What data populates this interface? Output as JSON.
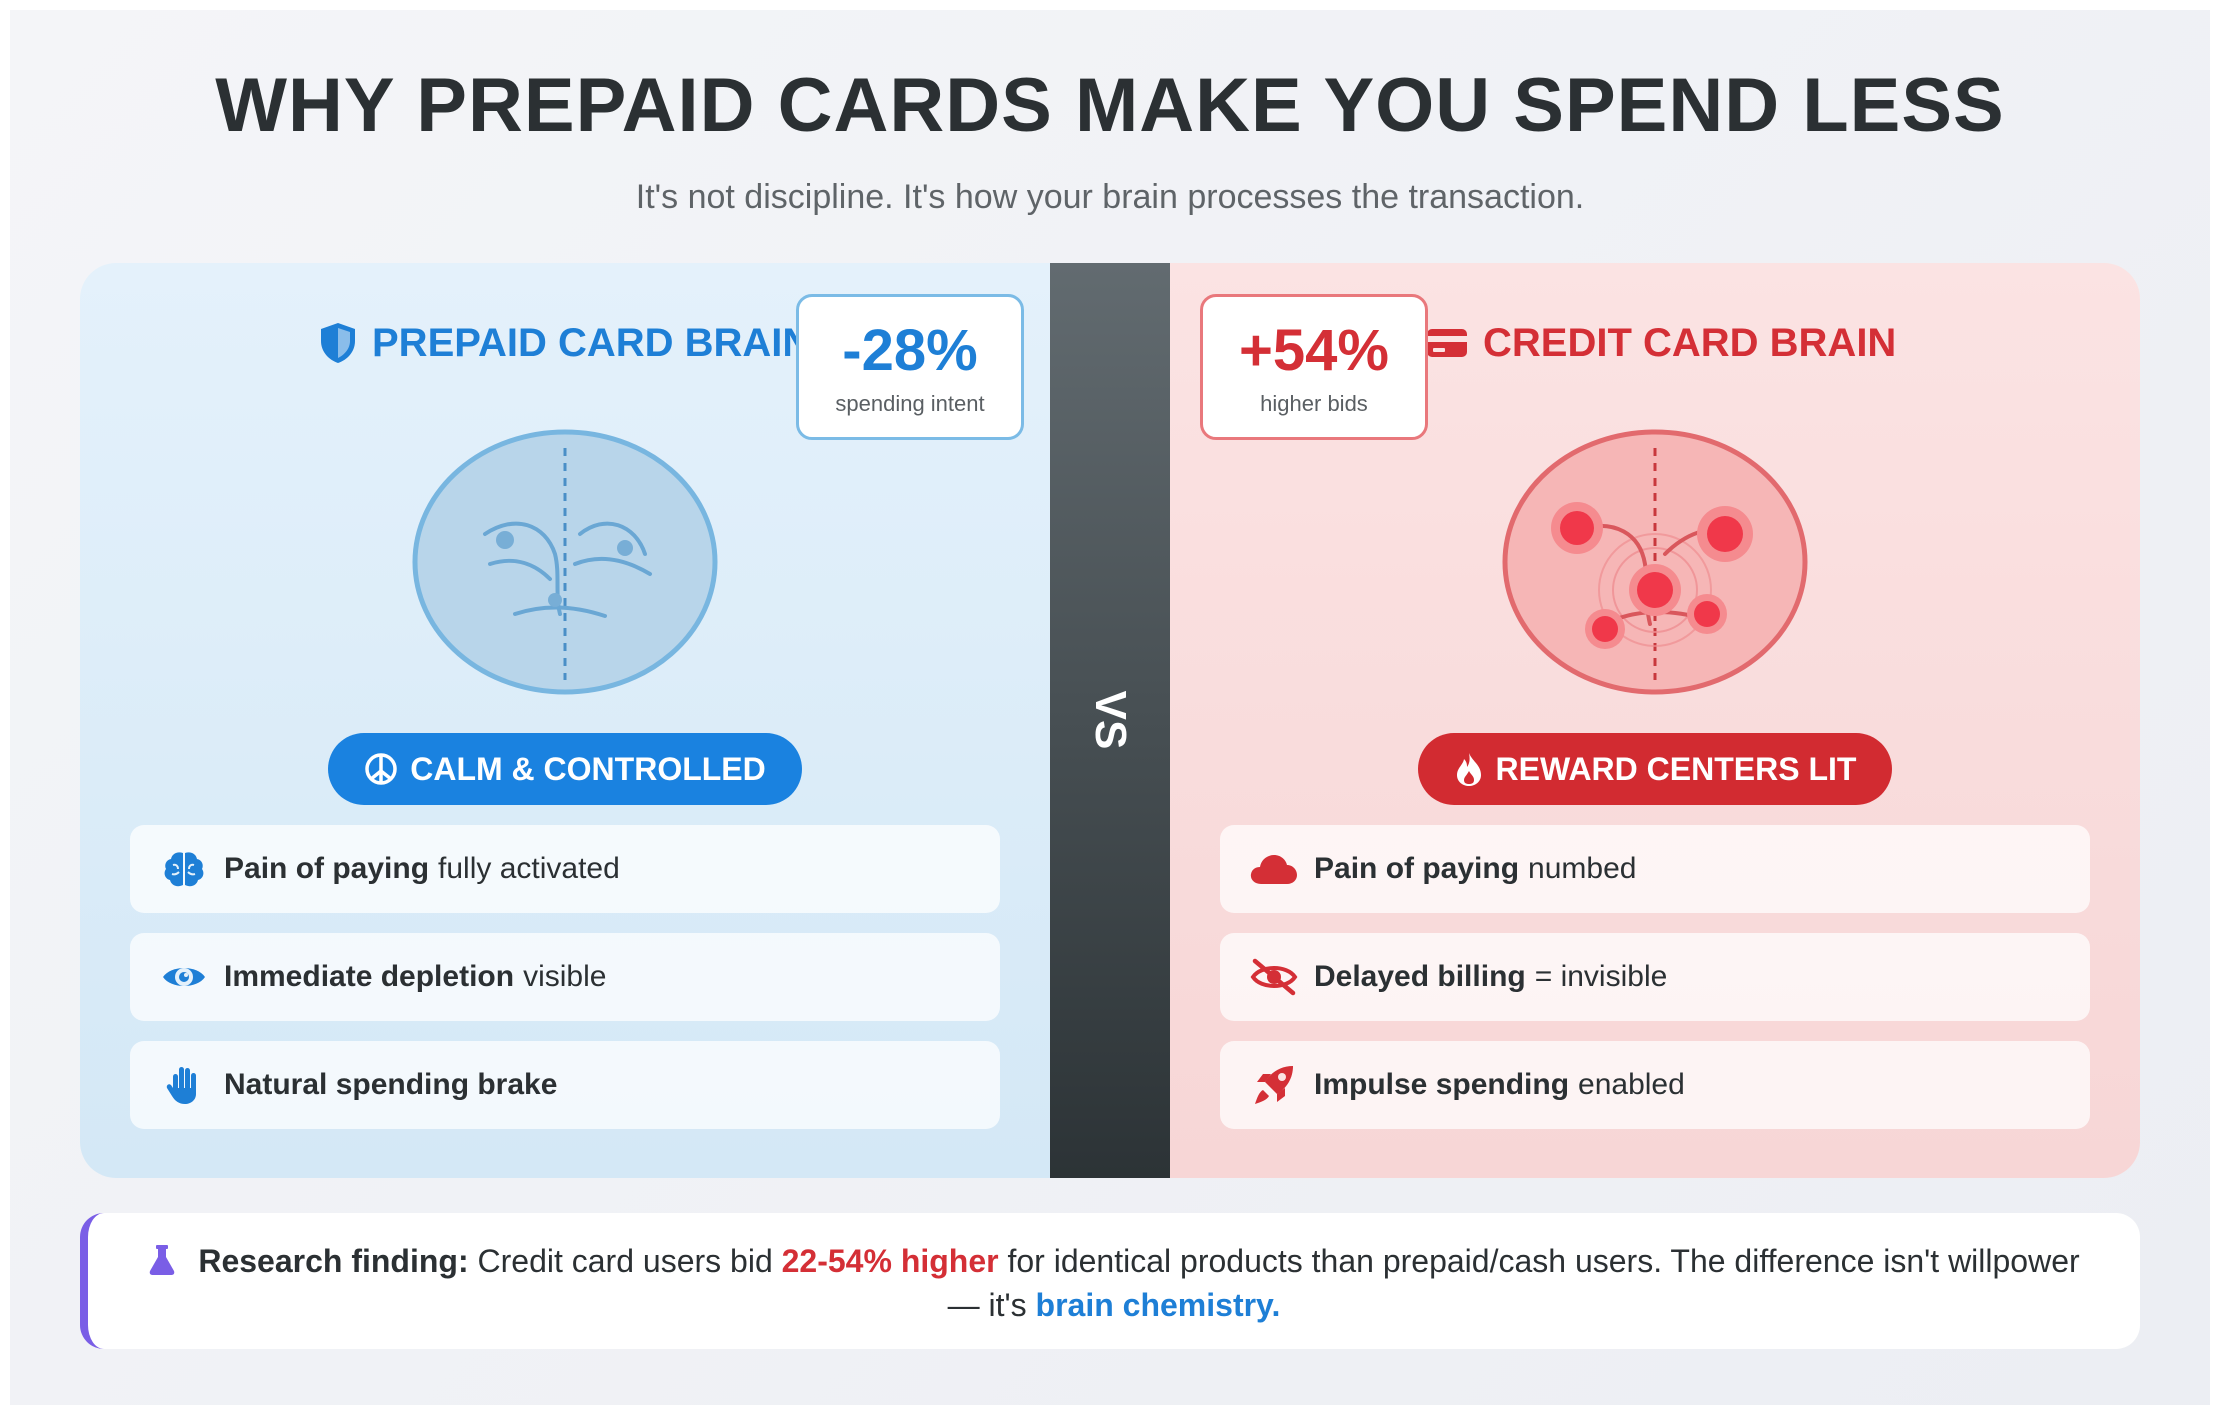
{
  "header": {
    "title": "WHY PREPAID CARDS MAKE YOU SPEND LESS",
    "subtitle": "It's not discipline. It's how your brain processes the transaction."
  },
  "vs_label": "VS",
  "prepaid": {
    "heading": "PREPAID CARD BRAIN",
    "heading_icon": "shield-icon",
    "stat_value": "-28%",
    "stat_label": "spending intent",
    "pill": "CALM & CONTROLLED",
    "pill_icon": "peace-icon",
    "accent": "#1e7fd6",
    "items": [
      {
        "icon": "brain-icon",
        "bold": "Pain of paying",
        "rest": "fully activated"
      },
      {
        "icon": "eye-icon",
        "bold": "Immediate depletion",
        "rest": "visible"
      },
      {
        "icon": "hand-icon",
        "bold": "Natural spending brake",
        "rest": ""
      }
    ]
  },
  "credit": {
    "heading": "CREDIT CARD BRAIN",
    "heading_icon": "credit-card-icon",
    "stat_value": "+54%",
    "stat_label": "higher bids",
    "pill": "REWARD CENTERS LIT",
    "pill_icon": "fire-icon",
    "accent": "#d42f36",
    "items": [
      {
        "icon": "cloud-icon",
        "bold": "Pain of paying",
        "rest": "numbed"
      },
      {
        "icon": "eye-slash-icon",
        "bold": "Delayed billing",
        "rest": "= invisible"
      },
      {
        "icon": "rocket-icon",
        "bold": "Impulse spending",
        "rest": "enabled"
      }
    ]
  },
  "finding": {
    "icon": "flask-icon",
    "label": "Research finding:",
    "text1": "Credit card users bid",
    "highlight": "22-54% higher",
    "text2": "for identical products than prepaid/cash users. The difference isn't willpower — it's",
    "emphasis": "brain chemistry."
  }
}
